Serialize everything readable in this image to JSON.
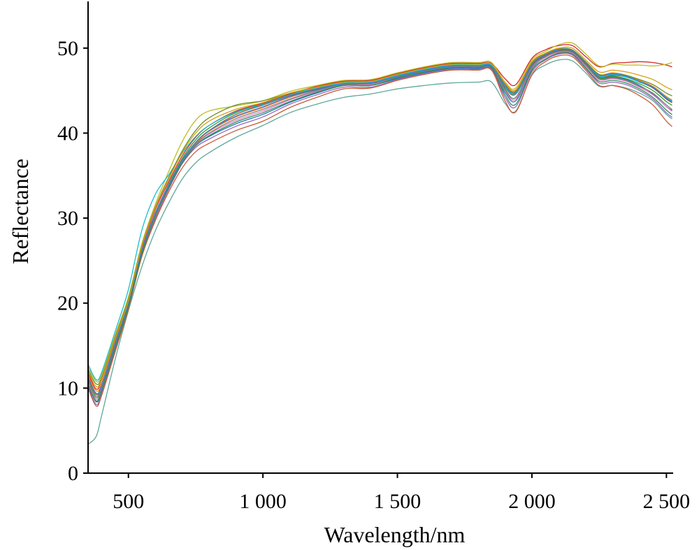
{
  "chart_data": {
    "type": "line",
    "xlabel": "Wavelength/nm",
    "ylabel": "Reflectance",
    "xlim": [
      350,
      2525
    ],
    "ylim": [
      0,
      55
    ],
    "x_ticks": [
      {
        "value": 500,
        "label": "500"
      },
      {
        "value": 1000,
        "label": "1 000"
      },
      {
        "value": 1500,
        "label": "1 500"
      },
      {
        "value": 2000,
        "label": "2 000"
      },
      {
        "value": 2500,
        "label": "2 500"
      }
    ],
    "y_ticks": [
      {
        "value": 0,
        "label": "0"
      },
      {
        "value": 10,
        "label": "10"
      },
      {
        "value": 20,
        "label": "20"
      },
      {
        "value": 30,
        "label": "30"
      },
      {
        "value": 40,
        "label": "40"
      },
      {
        "value": 50,
        "label": "50"
      }
    ],
    "grid": false,
    "legend": "none",
    "x": [
      350,
      380,
      400,
      450,
      500,
      550,
      600,
      650,
      700,
      750,
      800,
      900,
      1000,
      1100,
      1200,
      1300,
      1400,
      1500,
      1600,
      1700,
      1800,
      1850,
      1900,
      1940,
      2000,
      2050,
      2100,
      2150,
      2200,
      2250,
      2300,
      2350,
      2400,
      2450,
      2500,
      2520
    ],
    "series": [
      {
        "color": "#1f77b4",
        "values": [
          10.5,
          8.4,
          9.6,
          14.6,
          19.6,
          25.9,
          30.4,
          33.9,
          36.7,
          38.5,
          39.6,
          41.1,
          42.2,
          43.6,
          44.7,
          45.6,
          45.6,
          46.4,
          47.1,
          47.6,
          47.6,
          47.6,
          44.8,
          43.8,
          47.6,
          48.9,
          49.5,
          49.4,
          47.9,
          46.4,
          46.6,
          46.3,
          45.6,
          44.6,
          43.1,
          42.7
        ]
      },
      {
        "color": "#ff7f0e",
        "values": [
          11.5,
          9.7,
          10.5,
          15.3,
          20.1,
          26.3,
          30.6,
          33.8,
          36.6,
          38.8,
          40.2,
          41.9,
          43.0,
          44.2,
          45.1,
          45.8,
          45.8,
          46.7,
          47.4,
          47.9,
          47.9,
          47.9,
          45.8,
          45.0,
          48.2,
          49.2,
          49.8,
          49.7,
          48.4,
          46.9,
          47.1,
          46.8,
          46.2,
          45.5,
          44.3,
          43.9
        ]
      },
      {
        "color": "#2ca02c",
        "values": [
          10.8,
          8.9,
          10.0,
          14.9,
          19.8,
          26.1,
          30.5,
          34.0,
          37.0,
          39.2,
          40.6,
          42.4,
          43.4,
          44.6,
          45.4,
          46.1,
          46.1,
          46.9,
          47.6,
          48.0,
          48.0,
          48.0,
          45.2,
          44.2,
          47.9,
          49.0,
          49.6,
          49.5,
          48.1,
          46.5,
          46.7,
          46.4,
          45.8,
          45.0,
          43.7,
          43.3
        ]
      },
      {
        "color": "#d62728",
        "values": [
          11.8,
          9.9,
          10.9,
          15.6,
          20.4,
          26.6,
          31.0,
          34.3,
          37.3,
          39.5,
          40.9,
          42.6,
          43.5,
          44.6,
          45.5,
          46.1,
          46.2,
          47.0,
          47.7,
          48.2,
          48.2,
          48.2,
          46.4,
          45.7,
          48.8,
          49.8,
          50.3,
          50.3,
          49.0,
          47.8,
          48.2,
          48.3,
          48.4,
          48.3,
          48.0,
          47.8
        ]
      },
      {
        "color": "#9467bd",
        "values": [
          10.2,
          8.1,
          9.3,
          14.3,
          19.4,
          25.6,
          29.9,
          33.4,
          36.4,
          38.3,
          39.3,
          40.8,
          41.9,
          43.4,
          44.5,
          45.4,
          45.4,
          46.3,
          47.0,
          47.5,
          47.5,
          47.5,
          44.2,
          43.1,
          47.2,
          48.6,
          49.3,
          49.2,
          47.6,
          45.9,
          46.0,
          45.7,
          45.0,
          44.0,
          42.4,
          41.9
        ]
      },
      {
        "color": "#8c564b",
        "values": [
          11.2,
          9.3,
          10.2,
          15.1,
          20.0,
          26.2,
          30.6,
          33.9,
          36.8,
          38.9,
          40.3,
          42.2,
          43.3,
          44.4,
          45.2,
          45.9,
          45.9,
          46.7,
          47.4,
          47.9,
          47.9,
          47.9,
          45.4,
          44.6,
          48.0,
          49.1,
          49.7,
          49.6,
          48.2,
          46.6,
          46.8,
          46.6,
          46.0,
          45.3,
          44.0,
          43.6
        ]
      },
      {
        "color": "#e377c2",
        "values": [
          10.6,
          8.7,
          9.8,
          14.8,
          19.7,
          26.0,
          30.4,
          33.7,
          36.6,
          38.6,
          39.9,
          41.5,
          42.6,
          43.9,
          44.9,
          45.7,
          45.7,
          46.5,
          47.2,
          47.7,
          47.7,
          47.7,
          45.0,
          44.0,
          47.7,
          48.9,
          49.5,
          49.4,
          47.9,
          46.3,
          46.4,
          46.1,
          45.4,
          44.5,
          43.1,
          42.6
        ]
      },
      {
        "color": "#7f7f7f",
        "values": [
          11.0,
          9.1,
          10.1,
          15.0,
          19.9,
          26.1,
          30.5,
          33.8,
          36.7,
          38.7,
          40.0,
          41.7,
          42.8,
          44.0,
          45.0,
          45.7,
          45.8,
          46.6,
          47.3,
          47.8,
          47.8,
          47.8,
          45.1,
          44.2,
          47.8,
          49.0,
          49.6,
          49.5,
          48.0,
          46.4,
          46.5,
          46.2,
          45.5,
          44.7,
          43.3,
          42.8
        ]
      },
      {
        "color": "#bcbd22",
        "values": [
          12.5,
          10.8,
          11.5,
          16.2,
          20.7,
          27.0,
          31.6,
          35.5,
          39.0,
          41.5,
          42.6,
          43.2,
          43.8,
          44.9,
          45.6,
          46.2,
          46.3,
          47.1,
          47.8,
          48.3,
          48.3,
          48.3,
          46.0,
          45.3,
          48.6,
          49.6,
          50.4,
          50.6,
          49.3,
          47.9,
          48.1,
          48.0,
          48.0,
          47.9,
          48.1,
          48.3
        ]
      },
      {
        "color": "#17becf",
        "values": [
          12.8,
          11.0,
          11.8,
          16.6,
          21.6,
          28.6,
          32.8,
          35.1,
          37.6,
          39.6,
          40.9,
          42.5,
          43.4,
          44.5,
          45.3,
          45.9,
          46.0,
          46.8,
          47.5,
          48.0,
          48.0,
          48.0,
          45.5,
          44.7,
          48.1,
          49.2,
          49.8,
          49.7,
          48.3,
          46.7,
          46.9,
          46.6,
          46.0,
          45.4,
          44.2,
          43.8
        ]
      },
      {
        "color": "#5fa89a",
        "values": [
          3.4,
          4.3,
          6.7,
          13.3,
          19.1,
          24.3,
          28.5,
          31.8,
          34.6,
          36.5,
          37.7,
          39.5,
          40.9,
          42.4,
          43.4,
          44.2,
          44.6,
          45.2,
          45.6,
          45.9,
          46.0,
          46.0,
          43.5,
          42.6,
          46.8,
          48.0,
          48.6,
          48.5,
          47.1,
          45.5,
          45.6,
          45.3,
          44.7,
          43.8,
          42.2,
          41.7
        ]
      },
      {
        "color": "#6b8e23",
        "values": [
          12.2,
          10.5,
          11.2,
          15.9,
          20.5,
          26.8,
          31.3,
          34.8,
          37.9,
          40.3,
          41.8,
          43.3,
          43.8,
          44.7,
          45.4,
          46.0,
          46.1,
          46.9,
          47.6,
          48.1,
          48.1,
          48.1,
          45.7,
          44.9,
          48.3,
          49.3,
          49.9,
          49.8,
          48.4,
          46.9,
          47.0,
          46.8,
          46.3,
          45.7,
          44.7,
          44.4
        ]
      },
      {
        "color": "#c75b39",
        "values": [
          10.0,
          7.9,
          9.1,
          14.2,
          19.3,
          25.5,
          29.7,
          33.1,
          35.9,
          37.8,
          38.8,
          40.3,
          41.4,
          43.0,
          44.2,
          45.2,
          45.3,
          46.2,
          46.9,
          47.4,
          47.4,
          47.4,
          43.8,
          42.5,
          46.9,
          48.4,
          49.1,
          49.0,
          47.4,
          45.6,
          45.6,
          45.2,
          44.4,
          43.3,
          41.4,
          40.8
        ]
      },
      {
        "color": "#3b7dd8",
        "values": [
          11.3,
          9.4,
          10.3,
          15.2,
          20.0,
          26.2,
          30.6,
          33.9,
          36.8,
          38.9,
          40.3,
          42.0,
          43.1,
          44.3,
          45.1,
          45.8,
          45.9,
          46.7,
          47.4,
          47.9,
          47.9,
          47.9,
          45.6,
          44.8,
          48.1,
          49.2,
          49.8,
          49.7,
          48.3,
          46.8,
          47.0,
          46.7,
          46.1,
          45.4,
          44.1,
          43.7
        ]
      },
      {
        "color": "#d4a017",
        "values": [
          12.0,
          10.2,
          11.0,
          15.7,
          20.3,
          26.7,
          31.2,
          34.6,
          37.7,
          40.0,
          41.4,
          42.8,
          43.6,
          44.7,
          45.4,
          46.0,
          46.1,
          46.9,
          47.6,
          48.1,
          48.1,
          48.1,
          45.9,
          45.1,
          48.4,
          49.4,
          50.0,
          50.0,
          48.6,
          47.2,
          47.4,
          47.2,
          46.8,
          46.3,
          45.4,
          45.1
        ]
      },
      {
        "color": "#2e8b57",
        "values": [
          10.4,
          8.5,
          9.7,
          14.7,
          19.6,
          25.8,
          30.2,
          33.6,
          36.5,
          38.5,
          39.7,
          41.3,
          42.4,
          43.7,
          44.8,
          45.6,
          45.6,
          46.5,
          47.2,
          47.7,
          47.7,
          47.7,
          44.5,
          43.4,
          47.4,
          48.7,
          49.4,
          49.3,
          47.7,
          46.1,
          46.2,
          45.9,
          45.2,
          44.2,
          42.7,
          42.2
        ]
      }
    ]
  }
}
